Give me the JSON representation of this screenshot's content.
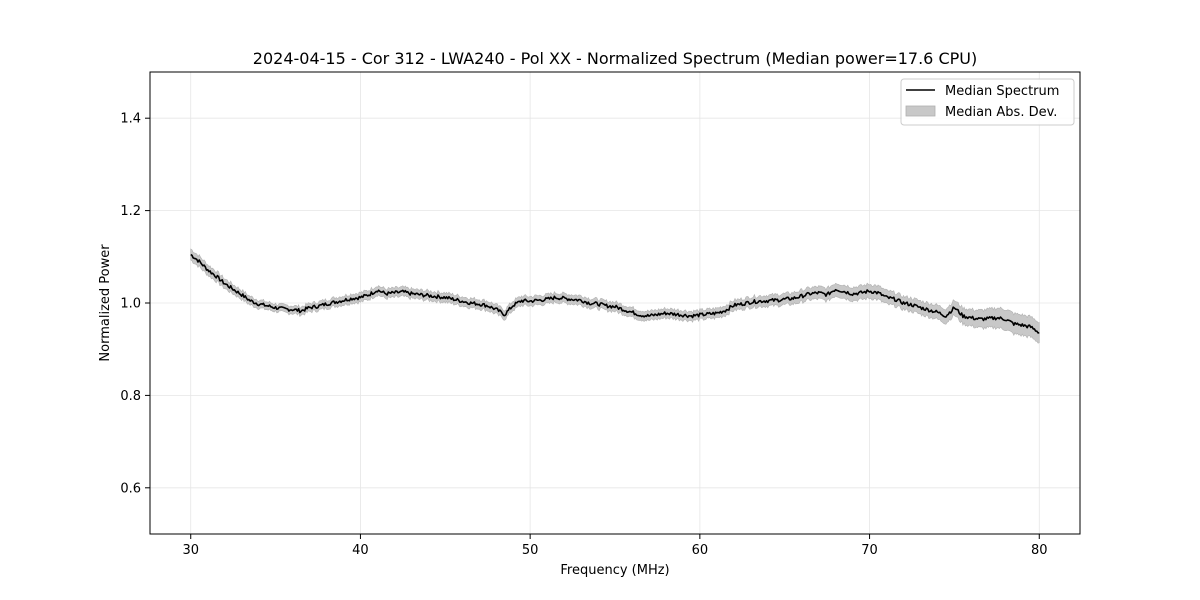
{
  "chart_data": {
    "type": "line",
    "title": "2024-04-15 - Cor 312 - LWA240 - Pol XX - Normalized Spectrum (Median power=17.6 CPU)",
    "xlabel": "Frequency (MHz)",
    "ylabel": "Normalized Power",
    "xlim": [
      27.6,
      82.4
    ],
    "ylim": [
      0.5,
      1.5
    ],
    "xticks": [
      30,
      40,
      50,
      60,
      70,
      80
    ],
    "yticks": [
      0.6,
      0.8,
      1.0,
      1.2,
      1.4
    ],
    "xtick_labels": [
      "30",
      "40",
      "50",
      "60",
      "70",
      "80"
    ],
    "ytick_labels": [
      "0.6",
      "0.8",
      "1.0",
      "1.2",
      "1.4"
    ],
    "grid": true,
    "legend_position": "top-right",
    "series": [
      {
        "name": "Median Spectrum",
        "kind": "line",
        "color": "#000000",
        "x": [
          30,
          30.5,
          31,
          31.5,
          32,
          32.5,
          33,
          33.5,
          34,
          34.5,
          35,
          35.5,
          36,
          36.5,
          37,
          37.5,
          38,
          38.5,
          39,
          39.5,
          40,
          40.5,
          41,
          41.5,
          42,
          42.5,
          43,
          43.5,
          44,
          44.5,
          45,
          45.5,
          46,
          46.5,
          47,
          47.5,
          48,
          48.5,
          49,
          49.5,
          50,
          50.5,
          51,
          51.5,
          52,
          52.5,
          53,
          53.5,
          54,
          54.5,
          55,
          55.5,
          56,
          56.5,
          57,
          57.5,
          58,
          58.5,
          59,
          59.5,
          60,
          60.5,
          61,
          61.5,
          62,
          62.5,
          63,
          63.5,
          64,
          64.5,
          65,
          65.5,
          66,
          66.5,
          67,
          67.5,
          68,
          68.5,
          69,
          69.5,
          70,
          70.5,
          71,
          71.5,
          72,
          72.5,
          73,
          73.5,
          74,
          74.5,
          75,
          75.5,
          76,
          76.5,
          77,
          77.5,
          78,
          78.5,
          79,
          79.5,
          80
        ],
        "y": [
          1.105,
          1.09,
          1.072,
          1.058,
          1.042,
          1.03,
          1.018,
          1.005,
          0.998,
          0.994,
          0.99,
          0.987,
          0.986,
          0.983,
          0.99,
          0.993,
          0.998,
          1.002,
          1.006,
          1.01,
          1.012,
          1.018,
          1.028,
          1.02,
          1.022,
          1.024,
          1.02,
          1.018,
          1.016,
          1.014,
          1.012,
          1.008,
          1.004,
          1.0,
          0.998,
          0.994,
          0.986,
          0.975,
          0.995,
          1.005,
          1.004,
          1.006,
          1.008,
          1.012,
          1.01,
          1.008,
          1.006,
          1.0,
          0.998,
          0.994,
          0.992,
          0.986,
          0.98,
          0.974,
          0.972,
          0.975,
          0.978,
          0.976,
          0.974,
          0.972,
          0.974,
          0.976,
          0.978,
          0.984,
          0.995,
          0.998,
          1.002,
          1.004,
          1.005,
          1.006,
          1.008,
          1.01,
          1.015,
          1.02,
          1.022,
          1.018,
          1.03,
          1.025,
          1.02,
          1.022,
          1.026,
          1.022,
          1.012,
          1.008,
          1.0,
          0.996,
          0.99,
          0.985,
          0.98,
          0.972,
          0.99,
          0.972,
          0.968,
          0.965,
          0.966,
          0.968,
          0.965,
          0.955,
          0.952,
          0.948,
          0.936
        ]
      },
      {
        "name": "Median Abs. Dev.",
        "kind": "band",
        "color": "#c8c8c8",
        "x": [
          30,
          35,
          40,
          45,
          50,
          55,
          60,
          65,
          70,
          72,
          74,
          75,
          76,
          77,
          78,
          79,
          80
        ],
        "spread": [
          0.012,
          0.008,
          0.01,
          0.01,
          0.01,
          0.01,
          0.01,
          0.012,
          0.015,
          0.014,
          0.015,
          0.016,
          0.018,
          0.02,
          0.022,
          0.022,
          0.022
        ]
      }
    ]
  }
}
